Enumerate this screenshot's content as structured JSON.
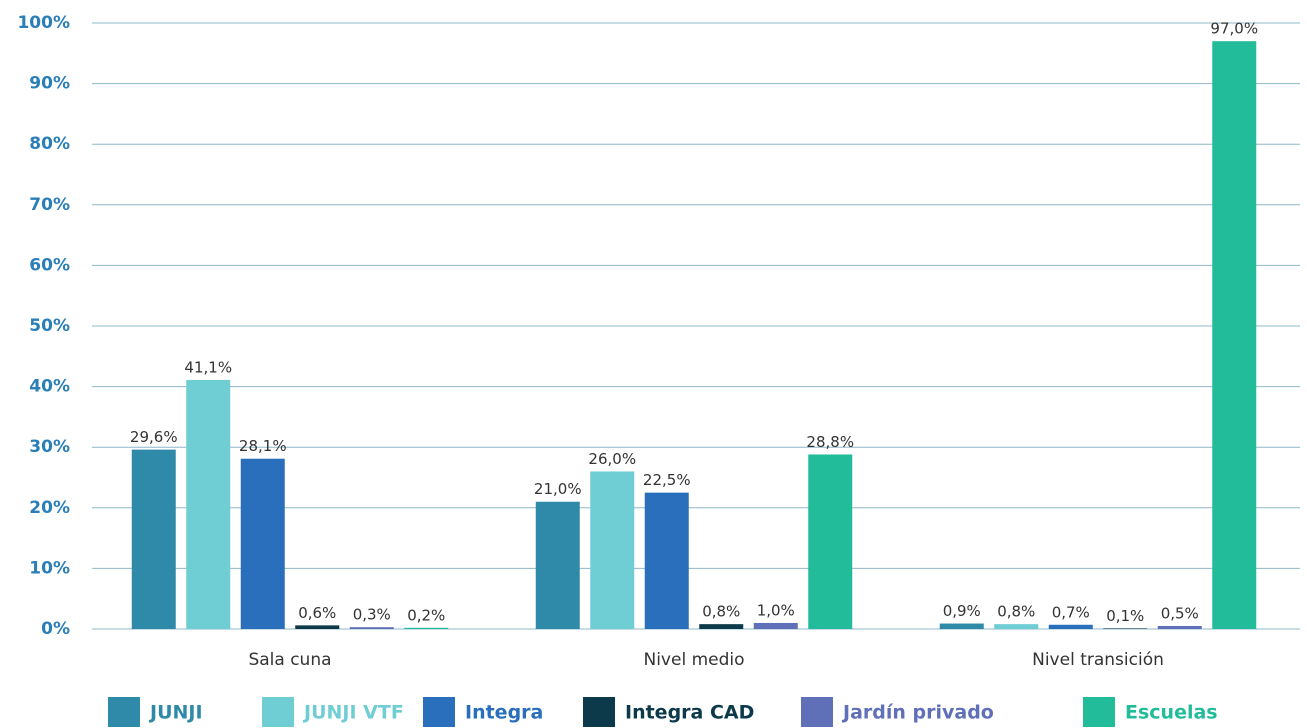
{
  "chart_data": {
    "type": "bar",
    "categories": [
      "Sala cuna",
      "Nivel medio",
      "Nivel transición"
    ],
    "series": [
      {
        "name": "JUNJI",
        "color": "#2e8aa8",
        "values": [
          29.6,
          21.0,
          0.9
        ],
        "value_labels": [
          "29,6%",
          "21,0%",
          "0,9%"
        ]
      },
      {
        "name": "JUNJI VTF",
        "color": "#6fcdd4",
        "values": [
          41.1,
          26.0,
          0.8
        ],
        "value_labels": [
          "41,1%",
          "26,0%",
          "0,8%"
        ]
      },
      {
        "name": "Integra",
        "color": "#2a6fbb",
        "values": [
          28.1,
          22.5,
          0.7
        ],
        "value_labels": [
          "28,1%",
          "22,5%",
          "0,7%"
        ]
      },
      {
        "name": "Integra CAD",
        "color": "#0d3a4a",
        "values": [
          0.6,
          0.8,
          0.1
        ],
        "value_labels": [
          "0,6%",
          "0,8%",
          "0,1%"
        ]
      },
      {
        "name": "Jardín privado",
        "color": "#5f70b8",
        "values": [
          0.3,
          1.0,
          0.5
        ],
        "value_labels": [
          "0,3%",
          "1,0%",
          "0,5%"
        ]
      },
      {
        "name": "Escuelas",
        "color": "#22bc9b",
        "values": [
          0.2,
          28.8,
          97.0
        ],
        "value_labels": [
          "0,2%",
          "28,8%",
          "97,0%"
        ]
      }
    ],
    "ylim": [
      0,
      100
    ],
    "yticks": [
      {
        "value": 0,
        "label": "0%"
      },
      {
        "value": 10,
        "label": "10%"
      },
      {
        "value": 20,
        "label": "20%"
      },
      {
        "value": 30,
        "label": "30%"
      },
      {
        "value": 40,
        "label": "40%"
      },
      {
        "value": 50,
        "label": "50%"
      },
      {
        "value": 60,
        "label": "60%"
      },
      {
        "value": 70,
        "label": "70%"
      },
      {
        "value": 80,
        "label": "80%"
      },
      {
        "value": 90,
        "label": "90%"
      },
      {
        "value": 100,
        "label": "100%"
      }
    ],
    "grid": true,
    "legend": "bottom"
  }
}
